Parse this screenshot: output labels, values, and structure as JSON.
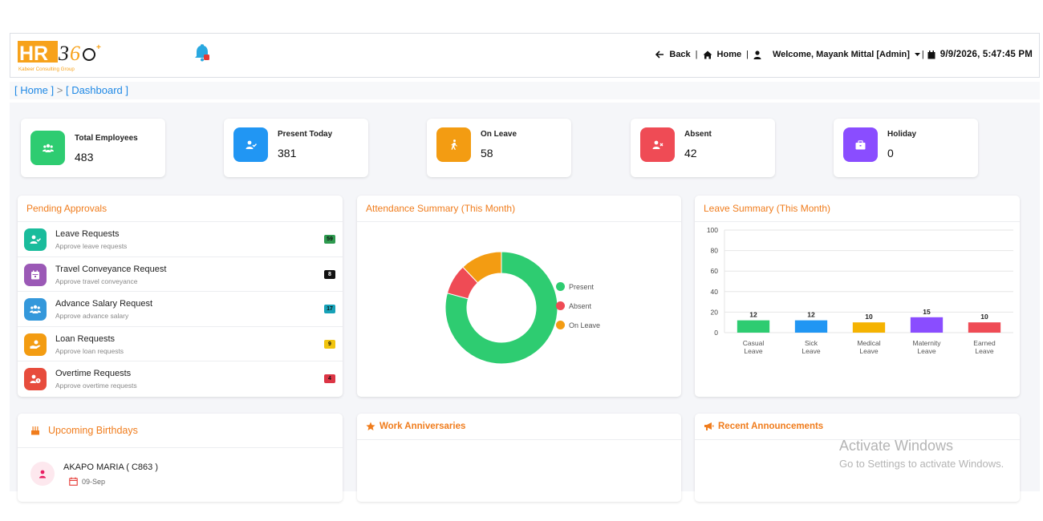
{
  "header": {
    "logo_text": "HR360",
    "logo_subtitle": "Kabeer Consulting Group",
    "back_label": "Back",
    "home_label": "Home",
    "welcome_label": "Welcome, Mayank Mittal [Admin]",
    "datetime": "9/9/2026, 5:47:45 PM",
    "notification_count": ""
  },
  "breadcrumb": {
    "home": "[ Home ]",
    "separator": ">",
    "current": "[ Dashboard ]"
  },
  "stats": [
    {
      "label": "Total Employees",
      "value": "483",
      "color": "#2ecc71",
      "icon": "users-icon"
    },
    {
      "label": "Present Today",
      "value": "381",
      "color": "#2196f3",
      "icon": "user-check-icon"
    },
    {
      "label": "On Leave",
      "value": "58",
      "color": "#f39c12",
      "icon": "walking-icon"
    },
    {
      "label": "Absent",
      "value": "42",
      "color": "#ef4b55",
      "icon": "user-times-icon"
    },
    {
      "label": "Holiday",
      "value": "0",
      "color": "#8a4dff",
      "icon": "briefcase-icon"
    }
  ],
  "pending": {
    "title": "Pending Approvals",
    "items": [
      {
        "title": "Leave Requests",
        "sub": "Approve leave requests",
        "count": "59",
        "color": "#1abc9c",
        "badge_bg": "#2e9a4f",
        "badge_fg": "#111",
        "icon": "user-check-icon"
      },
      {
        "title": "Travel Conveyance Request",
        "sub": "Approve travel conveyance",
        "count": "8",
        "color": "#9b59b6",
        "badge_bg": "#111",
        "badge_fg": "#fff",
        "icon": "calendar-icon"
      },
      {
        "title": "Advance Salary Request",
        "sub": "Approve advance salary",
        "count": "17",
        "color": "#3498db",
        "badge_bg": "#17a2b8",
        "badge_fg": "#111",
        "icon": "users-icon"
      },
      {
        "title": "Loan Requests",
        "sub": "Approve loan requests",
        "count": "9",
        "color": "#f39c12",
        "badge_bg": "#f1c40f",
        "badge_fg": "#111",
        "icon": "hand-money-icon"
      },
      {
        "title": "Overtime Requests",
        "sub": "Approve overtime requests",
        "count": "4",
        "color": "#e74c3c",
        "badge_bg": "#dc3545",
        "badge_fg": "#111",
        "icon": "user-clock-icon"
      }
    ]
  },
  "attendance": {
    "title": "Attendance Summary (This Month)",
    "legend": [
      {
        "label": "Present",
        "color": "#2ecc71"
      },
      {
        "label": "Absent",
        "color": "#ef4b55"
      },
      {
        "label": "On Leave",
        "color": "#f39c12"
      }
    ]
  },
  "leave_summary": {
    "title": "Leave Summary (This Month)"
  },
  "chart_data": [
    {
      "type": "pie",
      "title": "Attendance Summary (This Month)",
      "categories": [
        "Present",
        "Absent",
        "On Leave"
      ],
      "values": [
        381,
        42,
        58
      ],
      "colors": [
        "#2ecc71",
        "#ef4b55",
        "#f39c12"
      ],
      "donut": true,
      "legend": "right"
    },
    {
      "type": "bar",
      "title": "Leave Summary (This Month)",
      "categories": [
        [
          "Casual",
          "Leave"
        ],
        [
          "Sick",
          "Leave"
        ],
        [
          "Medical",
          "Leave"
        ],
        [
          "Maternity",
          "Leave"
        ],
        [
          "Earned",
          "Leave"
        ]
      ],
      "values": [
        12,
        12,
        10,
        15,
        10
      ],
      "colors": [
        "#2ecc71",
        "#2196f3",
        "#f5b301",
        "#8a4dff",
        "#ef4b55"
      ],
      "ylim": [
        0,
        100
      ],
      "yticks": [
        0,
        20,
        40,
        60,
        80,
        100
      ],
      "grid": true,
      "data_labels": true
    }
  ],
  "birthdays": {
    "title": "Upcoming Birthdays",
    "items": [
      {
        "name": "AKAPO MARIA ( C863 )",
        "date": "09-Sep"
      }
    ]
  },
  "anniversaries": {
    "title": "Work Anniversaries"
  },
  "announcements": {
    "title": "Recent Announcements"
  },
  "watermark": {
    "line1": "Activate Windows",
    "line2": "Go to Settings to activate Windows."
  }
}
